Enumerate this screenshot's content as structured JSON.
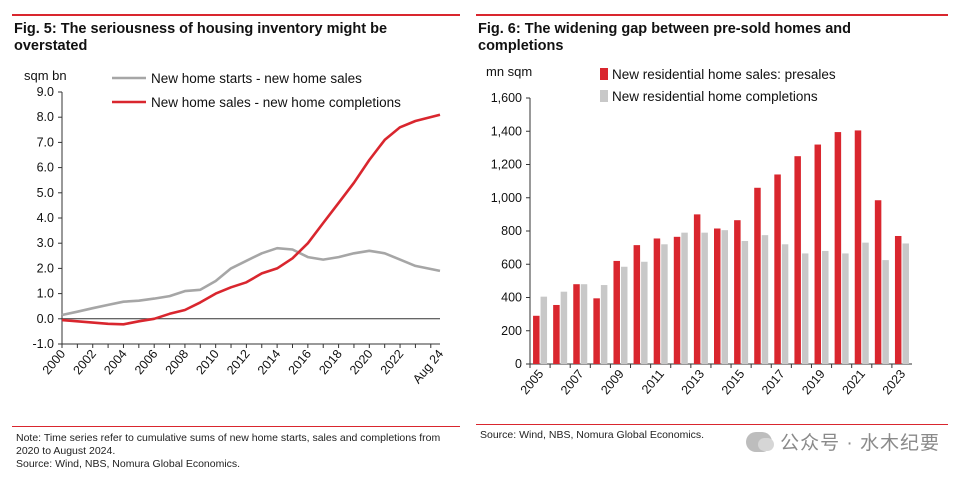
{
  "fig5": {
    "title": "Fig. 5: The seriousness of housing inventory might be overstated",
    "unit": "sqm bn",
    "note": "Note: Time series refer to cumulative sums of new home starts, sales and completions from 2020 to August 2024.",
    "source": "Source: Wind, NBS, Nomura Global Economics."
  },
  "fig6": {
    "title": "Fig. 6: The widening gap between pre-sold homes and completions",
    "unit": "mn sqm",
    "source": "Source: Wind, NBS, Nomura Global Economics."
  },
  "watermark": "公众号 · 水木纪要",
  "colors": {
    "red": "#d9262e",
    "grey": "#a6a6a6",
    "lightgrey": "#c8c8c8"
  },
  "chart_data": [
    {
      "type": "line",
      "title": "Fig. 5: The seriousness of housing inventory might be overstated",
      "ylabel": "sqm bn",
      "ylim": [
        -1.0,
        9.0
      ],
      "yticks": [
        "-1.0",
        "0.0",
        "1.0",
        "2.0",
        "3.0",
        "4.0",
        "5.0",
        "6.0",
        "7.0",
        "8.0",
        "9.0"
      ],
      "xticks": [
        "2000",
        "2002",
        "2004",
        "2006",
        "2008",
        "2010",
        "2012",
        "2014",
        "2016",
        "2018",
        "2020",
        "2022",
        "Aug 24"
      ],
      "x": [
        2000,
        2001,
        2002,
        2003,
        2004,
        2005,
        2006,
        2007,
        2008,
        2009,
        2010,
        2011,
        2012,
        2013,
        2014,
        2015,
        2016,
        2017,
        2018,
        2019,
        2020,
        2021,
        2022,
        2023,
        2024.6
      ],
      "series": [
        {
          "name": "New home starts - new home sales",
          "color": "#a6a6a6",
          "values": [
            0.15,
            0.28,
            0.42,
            0.55,
            0.68,
            0.72,
            0.8,
            0.9,
            1.1,
            1.15,
            1.5,
            2.0,
            2.3,
            2.6,
            2.8,
            2.75,
            2.45,
            2.35,
            2.45,
            2.6,
            2.7,
            2.6,
            2.35,
            2.1,
            1.9
          ]
        },
        {
          "name": "New home sales - new home completions",
          "color": "#d9262e",
          "values": [
            -0.05,
            -0.1,
            -0.15,
            -0.2,
            -0.22,
            -0.1,
            0.0,
            0.2,
            0.35,
            0.65,
            1.0,
            1.25,
            1.45,
            1.8,
            2.0,
            2.4,
            3.0,
            3.8,
            4.6,
            5.4,
            6.3,
            7.1,
            7.6,
            7.85,
            8.1
          ]
        }
      ],
      "legend": "top-left"
    },
    {
      "type": "bar",
      "title": "Fig. 6: The widening gap between pre-sold homes and completions",
      "ylabel": "mn sqm",
      "ylim": [
        0,
        1600
      ],
      "yticks": [
        "0",
        "200",
        "400",
        "600",
        "800",
        "1,000",
        "1,200",
        "1,400",
        "1,600"
      ],
      "categories": [
        "2005",
        "2006",
        "2007",
        "2008",
        "2009",
        "2010",
        "2011",
        "2012",
        "2013",
        "2014",
        "2015",
        "2016",
        "2017",
        "2018",
        "2019",
        "2020",
        "2021",
        "2022",
        "2023"
      ],
      "xticks": [
        "2005",
        "2007",
        "2009",
        "2011",
        "2013",
        "2015",
        "2017",
        "2019",
        "2021",
        "2023"
      ],
      "series": [
        {
          "name": "New residential home sales: presales",
          "color": "#d9262e",
          "values": [
            290,
            355,
            480,
            395,
            620,
            715,
            755,
            765,
            900,
            815,
            865,
            1060,
            1140,
            1250,
            1320,
            1395,
            1405,
            985,
            770
          ]
        },
        {
          "name": "New residential home completions",
          "color": "#c8c8c8",
          "values": [
            405,
            435,
            480,
            475,
            585,
            615,
            720,
            790,
            790,
            805,
            740,
            775,
            720,
            665,
            680,
            665,
            730,
            625,
            725
          ]
        }
      ],
      "legend": "top-left"
    }
  ]
}
